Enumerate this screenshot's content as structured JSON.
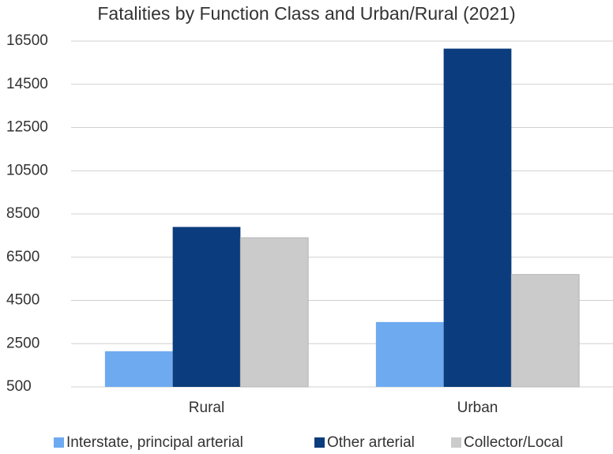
{
  "chart_data": {
    "type": "bar",
    "title": "Fatalities by Function Class and Urban/Rural (2021)",
    "categories": [
      "Rural",
      "Urban"
    ],
    "series": [
      {
        "name": "Interstate, principal arterial",
        "color": "#6eaaf0",
        "values": [
          2150,
          3500
        ]
      },
      {
        "name": "Other arterial",
        "color": "#0b3c7d",
        "values": [
          7900,
          16150
        ]
      },
      {
        "name": "Collector/Local",
        "color": "#cbcbcb",
        "values": [
          7400,
          5700
        ]
      }
    ],
    "ylim": [
      500,
      16500
    ],
    "yticks": [
      500,
      2500,
      4500,
      6500,
      8500,
      10500,
      12500,
      14500,
      16500
    ],
    "grid": true,
    "legend": "bottom"
  }
}
